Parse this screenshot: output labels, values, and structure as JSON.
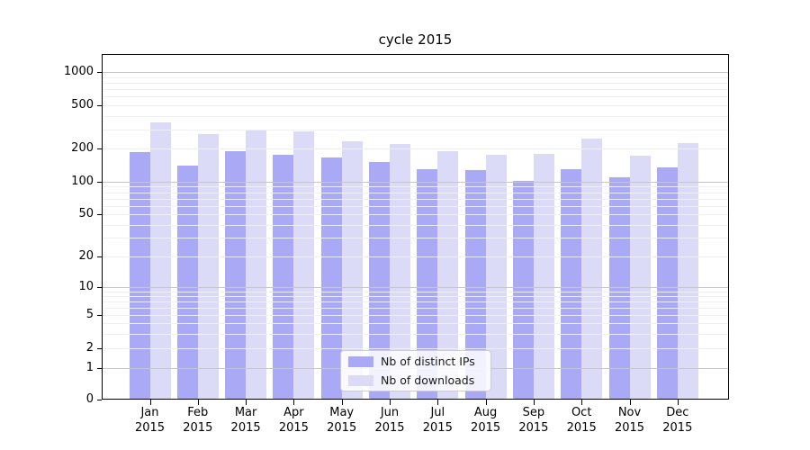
{
  "chart_data": {
    "type": "bar",
    "title": "cycle 2015",
    "categories": [
      "Jan",
      "Feb",
      "Mar",
      "Apr",
      "May",
      "Jun",
      "Jul",
      "Aug",
      "Sep",
      "Oct",
      "Nov",
      "Dec"
    ],
    "year_label": "2015",
    "series": [
      {
        "name": "Nb of distinct IPs",
        "color": "#a9a9f5",
        "values": [
          185,
          140,
          190,
          175,
          165,
          150,
          130,
          127,
          101,
          130,
          110,
          135
        ]
      },
      {
        "name": "Nb of downloads",
        "color": "#dbdbf8",
        "values": [
          350,
          270,
          300,
          290,
          235,
          220,
          190,
          175,
          180,
          245,
          172,
          225
        ]
      }
    ],
    "yticks": [
      0,
      1,
      2,
      5,
      10,
      20,
      50,
      100,
      200,
      500,
      1000
    ],
    "scale": "symlog",
    "ylim": [
      0,
      1500
    ],
    "xlabel": "",
    "ylabel": "",
    "grid": "both",
    "legend_position": "lower center",
    "colors": {
      "major_grid": "#c6c6c6",
      "minor_grid": "#f0f0f0",
      "spine": "#000000",
      "background": "#ffffff"
    }
  }
}
